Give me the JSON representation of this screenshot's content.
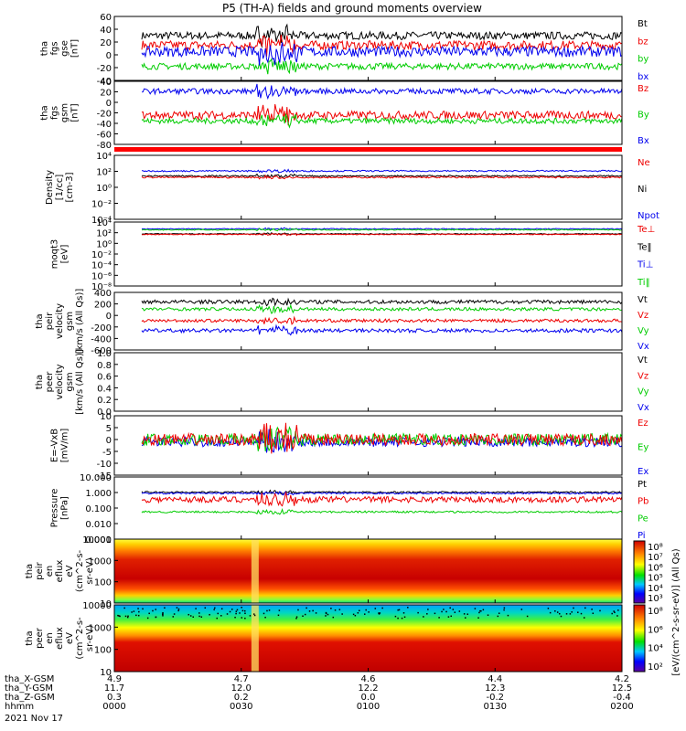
{
  "title": "P5 (TH-A) fields and ground moments overview",
  "chart_data": {
    "type": "line",
    "title": "P5 (TH-A) fields and ground moments overview",
    "date": "2021 Nov 17",
    "x_ticks": [
      "0000",
      "0030",
      "0100",
      "0130",
      "0200"
    ],
    "ephemeris": [
      {
        "label": "tha_X-GSM",
        "values": [
          "4.9",
          "4.7",
          "4.6",
          "4.4",
          "4.2"
        ]
      },
      {
        "label": "tha_Y-GSM",
        "values": [
          "11.7",
          "12.0",
          "12.2",
          "12.3",
          "12.5"
        ]
      },
      {
        "label": "tha_Z-GSM",
        "values": [
          "0.3",
          "0.2",
          "0.0",
          "-0.2",
          "-0.4"
        ]
      },
      {
        "label": "hhmm",
        "values": [
          "0000",
          "0030",
          "0100",
          "0130",
          "0200"
        ]
      }
    ],
    "panels": [
      {
        "id": "fgs_gse",
        "ylabel": [
          "tha",
          "fgs",
          "gse",
          "[nT]"
        ],
        "ylim": [
          -40,
          60
        ],
        "scale": "linear",
        "yticks": [
          "60",
          "40",
          "20",
          "0",
          "-20",
          "-40"
        ],
        "legend": [
          {
            "name": "Bt",
            "color": "#000000"
          },
          {
            "name": "bz",
            "color": "#ee0000"
          },
          {
            "name": "by",
            "color": "#00cc00"
          },
          {
            "name": "bx",
            "color": "#0000ee"
          }
        ],
        "series": [
          {
            "name": "Bt",
            "color": "#000000",
            "base": 30,
            "noise": 6
          },
          {
            "name": "bz",
            "color": "#ee0000",
            "base": 15,
            "noise": 7
          },
          {
            "name": "by",
            "color": "#00cc00",
            "base": -18,
            "noise": 5
          },
          {
            "name": "bx",
            "color": "#0000ee",
            "base": 5,
            "noise": 8
          }
        ]
      },
      {
        "id": "fgs_gsm",
        "ylabel": [
          "tha",
          "fgs",
          "gsm",
          "[nT]"
        ],
        "ylim": [
          -90,
          50
        ],
        "scale": "linear",
        "yticks": [
          "40",
          "20",
          "0",
          "-20",
          "-40",
          "-60",
          "-80"
        ],
        "legend": [
          {
            "name": "Bz",
            "color": "#ee0000"
          },
          {
            "name": "By",
            "color": "#00cc00"
          },
          {
            "name": "Bx",
            "color": "#0000ee"
          }
        ],
        "series": [
          {
            "name": "Bz",
            "color": "#ee0000",
            "base": -25,
            "noise": 9
          },
          {
            "name": "By",
            "color": "#00cc00",
            "base": -38,
            "noise": 6
          },
          {
            "name": "Bx",
            "color": "#0000ee",
            "base": 28,
            "noise": 6
          }
        ]
      },
      {
        "id": "density",
        "ylabel": [
          "Density",
          "[1/cc]",
          "[cm-3]"
        ],
        "ylim": [
          -5,
          4
        ],
        "scale": "log",
        "yticks": [
          "10⁴",
          "10²",
          "10⁰",
          "10⁻²",
          "10⁻⁴"
        ],
        "legend": [
          {
            "name": "Ne",
            "color": "#ee0000"
          },
          {
            "name": "Ni",
            "color": "#000000"
          },
          {
            "name": "Npot",
            "color": "#0000ee"
          }
        ],
        "series": [
          {
            "name": "Npot",
            "color": "#0000ee",
            "base": 1.8,
            "noise": 0.1
          },
          {
            "name": "Ni",
            "color": "#000000",
            "base": 1.1,
            "noise": 0.1
          },
          {
            "name": "Ne",
            "color": "#ee0000",
            "base": 0.9,
            "noise": 0.1
          }
        ]
      },
      {
        "id": "temperature",
        "ylabel": [
          "moqt3",
          "[eV]"
        ],
        "ylim": [
          -9,
          5
        ],
        "scale": "log",
        "yticks": [
          "10⁴",
          "10²",
          "10⁰",
          "10⁻²",
          "10⁻⁴",
          "10⁻⁶",
          "10⁻⁸"
        ],
        "legend": [
          {
            "name": "Te⊥",
            "color": "#ee0000"
          },
          {
            "name": "Te‖",
            "color": "#000000"
          },
          {
            "name": "Ti⊥",
            "color": "#0000ee"
          },
          {
            "name": "Ti‖",
            "color": "#00cc00"
          }
        ],
        "series": [
          {
            "name": "Ti⊥",
            "color": "#0000ee",
            "base": 3.5,
            "noise": 0.1
          },
          {
            "name": "Ti‖",
            "color": "#00cc00",
            "base": 3.3,
            "noise": 0.1
          },
          {
            "name": "Te‖",
            "color": "#000000",
            "base": 2.4,
            "noise": 0.1
          },
          {
            "name": "Te⊥",
            "color": "#ee0000",
            "base": 2.3,
            "noise": 0.1
          }
        ]
      },
      {
        "id": "velocity_peir",
        "ylabel": [
          "tha",
          "peir",
          "velocity",
          "gsm",
          "[km/s (All Qs)]"
        ],
        "ylim": [
          -600,
          500
        ],
        "scale": "linear",
        "yticks": [
          "400",
          "200",
          "0",
          "-200",
          "-400",
          "-600"
        ],
        "legend": [
          {
            "name": "Vt",
            "color": "#000000"
          },
          {
            "name": "Vz",
            "color": "#ee0000"
          },
          {
            "name": "Vy",
            "color": "#00cc00"
          },
          {
            "name": "Vx",
            "color": "#0000ee"
          }
        ],
        "series": [
          {
            "name": "Vt",
            "color": "#000000",
            "base": 320,
            "noise": 35
          },
          {
            "name": "Vy",
            "color": "#00cc00",
            "base": 180,
            "noise": 30
          },
          {
            "name": "Vz",
            "color": "#ee0000",
            "base": -40,
            "noise": 30
          },
          {
            "name": "Vx",
            "color": "#0000ee",
            "base": -230,
            "noise": 35
          }
        ]
      },
      {
        "id": "velocity_peer",
        "ylabel": [
          "tha",
          "peer",
          "velocity",
          "gsm",
          "[km/s (All Qs)]"
        ],
        "ylim": [
          0,
          1
        ],
        "scale": "linear",
        "yticks": [
          "1.0",
          "0.8",
          "0.6",
          "0.4",
          "0.2",
          "0.0"
        ],
        "legend": [
          {
            "name": "Vt",
            "color": "#000000"
          },
          {
            "name": "Vz",
            "color": "#ee0000"
          },
          {
            "name": "Vy",
            "color": "#00cc00"
          },
          {
            "name": "Vx",
            "color": "#0000ee"
          }
        ],
        "series": []
      },
      {
        "id": "efield",
        "ylabel": [
          "E=-VxB",
          "[mV/m]"
        ],
        "ylim": [
          -15,
          10
        ],
        "scale": "linear",
        "yticks": [
          "10",
          "5",
          "0",
          "-5",
          "-10",
          "-15"
        ],
        "legend": [
          {
            "name": "Ez",
            "color": "#ee0000"
          },
          {
            "name": "Ey",
            "color": "#00cc00"
          },
          {
            "name": "Ex",
            "color": "#0000ee"
          }
        ],
        "series": [
          {
            "name": "Ex",
            "color": "#0000ee",
            "base": -1,
            "noise": 2
          },
          {
            "name": "Ey",
            "color": "#00cc00",
            "base": 0,
            "noise": 2.5
          },
          {
            "name": "Ez",
            "color": "#ee0000",
            "base": 0,
            "noise": 2.5
          }
        ]
      },
      {
        "id": "pressure",
        "ylabel": [
          "Pressure",
          "[nPa]"
        ],
        "ylim": [
          -3,
          1
        ],
        "scale": "log",
        "yticks": [
          "10.000",
          "1.000",
          "0.100",
          "0.010",
          "0.001"
        ],
        "legend": [
          {
            "name": "Pt",
            "color": "#000000"
          },
          {
            "name": "Pb",
            "color": "#ee0000"
          },
          {
            "name": "Pe",
            "color": "#00cc00"
          },
          {
            "name": "Pi",
            "color": "#0000ee"
          }
        ],
        "series": [
          {
            "name": "Pt",
            "color": "#000000",
            "base": 0.02,
            "noise": 0.05
          },
          {
            "name": "Pi",
            "color": "#0000ee",
            "base": -0.05,
            "noise": 0.05
          },
          {
            "name": "Pb",
            "color": "#ee0000",
            "base": -0.45,
            "noise": 0.2
          },
          {
            "name": "Pe",
            "color": "#00cc00",
            "base": -1.25,
            "noise": 0.06
          }
        ]
      },
      {
        "id": "peir_eflux",
        "type": "heatmap",
        "ylabel": [
          "tha",
          "peir",
          "en",
          "eflux",
          "eV",
          "(cm^2-s-",
          "sr-eV)"
        ],
        "ylim": [
          1,
          4.3
        ],
        "scale": "log",
        "yticks": [
          "10000",
          "1000",
          "100",
          "10"
        ]
      },
      {
        "id": "peer_eflux",
        "type": "heatmap",
        "ylabel": [
          "tha",
          "peer",
          "en",
          "eflux",
          "eV",
          "(cm^2-s-",
          "sr-eV)"
        ],
        "ylim": [
          0.8,
          4.4
        ],
        "scale": "log",
        "yticks": [
          "10000",
          "1000",
          "100",
          "10"
        ]
      }
    ],
    "colorbar": {
      "label": "[eV/(cm^2-s-sr-eV)] (All Qs)",
      "panels": [
        {
          "ticks": [
            "10⁸",
            "10⁷",
            "10⁶",
            "10⁵",
            "10⁴",
            "10³"
          ]
        },
        {
          "ticks": [
            "10⁸",
            "10⁶",
            "10⁴",
            "10²"
          ]
        }
      ]
    }
  }
}
